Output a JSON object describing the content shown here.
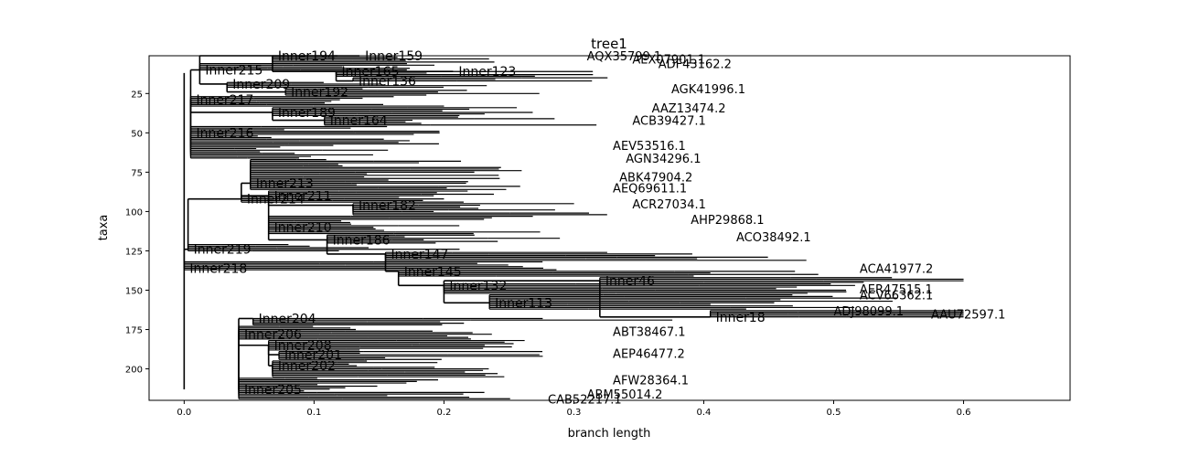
{
  "chart_data": {
    "type": "tree",
    "title": "tree1",
    "xlabel": "branch length",
    "ylabel": "taxa",
    "xlim": [
      -0.027,
      0.682
    ],
    "ylim": [
      220,
      1
    ],
    "grid": false,
    "xticks": [
      0.0,
      0.1,
      0.2,
      0.3,
      0.4,
      0.5,
      0.6
    ],
    "xtick_labels": [
      "0.0",
      "0.1",
      "0.2",
      "0.3",
      "0.4",
      "0.5",
      "0.6"
    ],
    "yticks": [
      25,
      50,
      75,
      100,
      125,
      150,
      175,
      200
    ],
    "ytick_labels": [
      "25",
      "50",
      "75",
      "100",
      "125",
      "150",
      "175",
      "200"
    ],
    "root": "Inner218",
    "inner_nodes": [
      {
        "name": "Inner218",
        "x": 0.0,
        "y": 136
      },
      {
        "name": "Inner219",
        "x": 0.003,
        "y": 124
      },
      {
        "name": "Inner217",
        "x": 0.005,
        "y": 29
      },
      {
        "name": "Inner216",
        "x": 0.005,
        "y": 50
      },
      {
        "name": "Inner215",
        "x": 0.012,
        "y": 10
      },
      {
        "name": "Inner209",
        "x": 0.033,
        "y": 19
      },
      {
        "name": "Inner214",
        "x": 0.044,
        "y": 92
      },
      {
        "name": "Inner213",
        "x": 0.051,
        "y": 82
      },
      {
        "name": "Inner211",
        "x": 0.065,
        "y": 90
      },
      {
        "name": "Inner210",
        "x": 0.065,
        "y": 110
      },
      {
        "name": "Inner206",
        "x": 0.042,
        "y": 178
      },
      {
        "name": "Inner204",
        "x": 0.053,
        "y": 168
      },
      {
        "name": "Inner208",
        "x": 0.065,
        "y": 185
      },
      {
        "name": "Inner201",
        "x": 0.073,
        "y": 191
      },
      {
        "name": "Inner202",
        "x": 0.068,
        "y": 198
      },
      {
        "name": "Inner205",
        "x": 0.042,
        "y": 213
      },
      {
        "name": "Inner194",
        "x": 0.068,
        "y": 1
      },
      {
        "name": "Inner192",
        "x": 0.078,
        "y": 24
      },
      {
        "name": "Inner189",
        "x": 0.068,
        "y": 37
      },
      {
        "name": "Inner186",
        "x": 0.11,
        "y": 118
      },
      {
        "name": "Inner182",
        "x": 0.13,
        "y": 96
      },
      {
        "name": "Inner165",
        "x": 0.117,
        "y": 11
      },
      {
        "name": "Inner164",
        "x": 0.108,
        "y": 42
      },
      {
        "name": "Inner159",
        "x": 0.135,
        "y": 1
      },
      {
        "name": "Inner147",
        "x": 0.155,
        "y": 127
      },
      {
        "name": "Inner145",
        "x": 0.165,
        "y": 138
      },
      {
        "name": "Inner136",
        "x": 0.13,
        "y": 17
      },
      {
        "name": "Inner132",
        "x": 0.2,
        "y": 147
      },
      {
        "name": "Inner123",
        "x": 0.207,
        "y": 11
      },
      {
        "name": "Inner113",
        "x": 0.235,
        "y": 158
      },
      {
        "name": "Inner46",
        "x": 0.32,
        "y": 144
      },
      {
        "name": "Inner18",
        "x": 0.405,
        "y": 167
      }
    ],
    "leaf_labels": [
      {
        "name": "AQX35799.1",
        "x": 0.31,
        "y": 1
      },
      {
        "name": "AEX07901.1",
        "x": 0.345,
        "y": 3
      },
      {
        "name": "ADF43162.2",
        "x": 0.365,
        "y": 6
      },
      {
        "name": "AGK41996.1",
        "x": 0.375,
        "y": 22
      },
      {
        "name": "AAZ13474.2",
        "x": 0.36,
        "y": 34
      },
      {
        "name": "ACB39427.1",
        "x": 0.345,
        "y": 42
      },
      {
        "name": "AEV53516.1",
        "x": 0.33,
        "y": 58
      },
      {
        "name": "AGN34296.1",
        "x": 0.34,
        "y": 66
      },
      {
        "name": "ABK47904.2",
        "x": 0.335,
        "y": 78
      },
      {
        "name": "AEQ69611.1",
        "x": 0.33,
        "y": 85
      },
      {
        "name": "ACR27034.1",
        "x": 0.345,
        "y": 95
      },
      {
        "name": "AHP29868.1",
        "x": 0.39,
        "y": 105
      },
      {
        "name": "ACO38492.1",
        "x": 0.425,
        "y": 116
      },
      {
        "name": "ACA41977.2",
        "x": 0.52,
        "y": 136
      },
      {
        "name": "AER47515.1",
        "x": 0.52,
        "y": 149
      },
      {
        "name": "ACV66362.1",
        "x": 0.52,
        "y": 153
      },
      {
        "name": "ADJ98099.1",
        "x": 0.5,
        "y": 163
      },
      {
        "name": "AAU72597.1",
        "x": 0.575,
        "y": 165
      },
      {
        "name": "ABT38467.1",
        "x": 0.33,
        "y": 176
      },
      {
        "name": "AEP46477.2",
        "x": 0.33,
        "y": 190
      },
      {
        "name": "AFW28364.1",
        "x": 0.33,
        "y": 207
      },
      {
        "name": "ABM55014.2",
        "x": 0.31,
        "y": 216
      },
      {
        "name": "CAB52217.1",
        "x": 0.28,
        "y": 219
      }
    ]
  }
}
